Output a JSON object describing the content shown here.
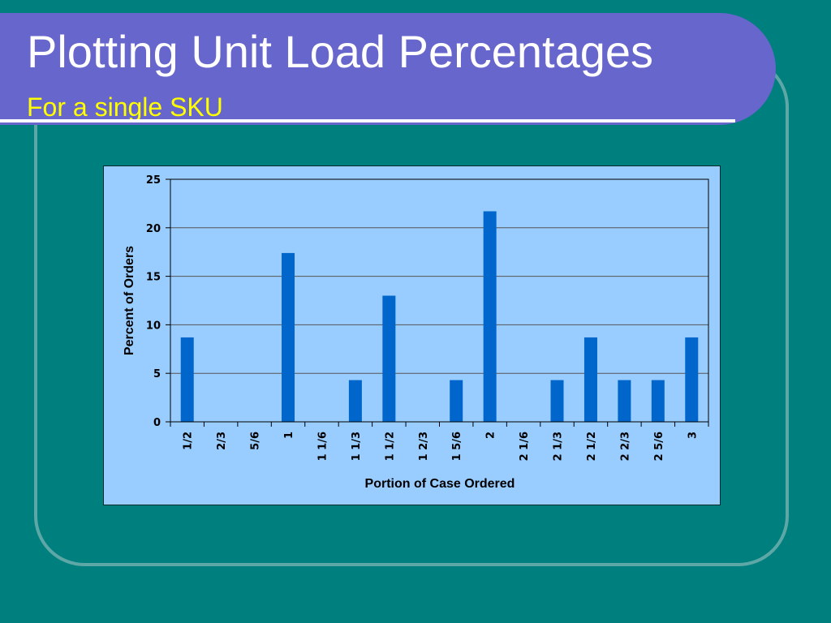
{
  "slide": {
    "title": "Plotting Unit Load Percentages",
    "subtitle": "For a single SKU"
  },
  "colors": {
    "background": "#007f7f",
    "banner": "#6666cc",
    "subtitle": "#ffff00",
    "plot_area": "#99ccff",
    "bar": "#0066cc"
  },
  "chart_data": {
    "type": "bar",
    "categories": [
      "1/2",
      "2/3",
      "5/6",
      "1",
      "1 1/6",
      "1 1/3",
      "1 1/2",
      "1 2/3",
      "1 5/6",
      "2",
      "2 1/6",
      "2 1/3",
      "2 1/2",
      "2 2/3",
      "2 5/6",
      "3"
    ],
    "values": [
      8.7,
      0,
      0,
      17.4,
      0,
      4.3,
      13.0,
      0,
      4.3,
      21.7,
      0,
      4.3,
      8.7,
      4.3,
      4.3,
      8.7
    ],
    "xlabel": "Portion of Case Ordered",
    "ylabel": "Percent of Orders",
    "ylim": [
      0,
      25
    ],
    "yticks": [
      "0",
      "5",
      "10",
      "15",
      "20",
      "25"
    ],
    "grid": true,
    "legend": "none"
  }
}
